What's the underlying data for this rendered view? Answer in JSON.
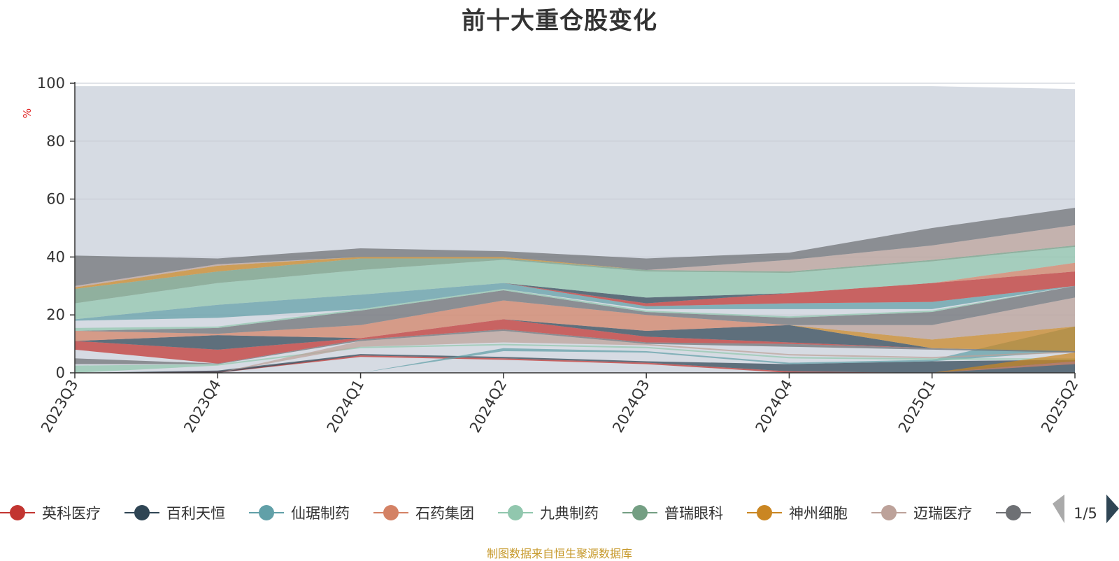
{
  "title": "前十大重仓股变化",
  "footer": "制图数据来自恒生聚源数据库",
  "legend_page": "1/5",
  "chart_data": {
    "type": "area",
    "title": "前十大重仓股变化",
    "xlabel": "",
    "ylabel": "%",
    "ylim": [
      0,
      100
    ],
    "yticks": [
      0,
      20,
      40,
      60,
      80,
      100
    ],
    "categories": [
      "2023Q3",
      "2023Q4",
      "2024Q1",
      "2024Q2",
      "2024Q3",
      "2024Q4",
      "2025Q1",
      "2025Q2"
    ],
    "grid": true,
    "legend_position": "bottom",
    "background_region": {
      "name": "",
      "values": [
        99,
        99,
        99,
        99,
        99,
        99,
        99,
        98
      ],
      "color": "#d6dbe3"
    },
    "series": [
      {
        "name": "英科医疗",
        "color": "#c23531",
        "lower": [
          0,
          0,
          5.5,
          4.5,
          3.0,
          0,
          0,
          0
        ],
        "upper": [
          0,
          0.5,
          6.0,
          5.0,
          3.5,
          0.5,
          0,
          0
        ]
      },
      {
        "name": "百利天恒",
        "color": "#2f4554",
        "lower": [
          0,
          0,
          6.0,
          5.0,
          3.5,
          0.5,
          0,
          0
        ],
        "upper": [
          0,
          0.8,
          6.5,
          5.5,
          4.0,
          3.0,
          4.0,
          4.5
        ]
      },
      {
        "name": "仙琚制药",
        "color": "#61a0a8",
        "lower": [
          0,
          0,
          0,
          7.5,
          7.0,
          3.0,
          4.0,
          7.5
        ],
        "upper": [
          0,
          0,
          0,
          8.5,
          7.5,
          3.5,
          4.5,
          16.0
        ]
      },
      {
        "name": "石药集团",
        "color": "#d48265",
        "lower": [
          0,
          0,
          0,
          0,
          0,
          0,
          0,
          3.0
        ],
        "upper": [
          0,
          0,
          0,
          0,
          0,
          0,
          0,
          4.0
        ]
      },
      {
        "name": "九典制药",
        "color": "#91c7ae",
        "lower": [
          0,
          2.5,
          8.5,
          9.5,
          8.5,
          5.0,
          4.5,
          4.5
        ],
        "upper": [
          2.5,
          3.0,
          9.0,
          10.0,
          9.0,
          5.5,
          5.0,
          5.0
        ]
      },
      {
        "name": "普瑞眼科",
        "color": "#749f83",
        "lower": [
          0,
          0,
          0,
          0,
          0,
          0,
          0,
          0
        ],
        "upper": [
          0,
          0,
          0,
          0,
          0,
          0,
          0,
          0
        ]
      },
      {
        "name": "神州细胞",
        "color": "#ca8622",
        "lower": [
          0,
          0,
          0,
          0,
          0,
          0,
          0,
          4.0
        ],
        "upper": [
          0,
          0,
          0,
          0,
          0,
          0,
          0,
          7.0
        ]
      },
      {
        "name": "迈瑞医疗",
        "color": "#bda29a",
        "lower": [
          0,
          0,
          9.0,
          10.5,
          9.5,
          6.0,
          5.0,
          7.0
        ],
        "upper": [
          0,
          0,
          11.0,
          14.5,
          10.0,
          6.5,
          5.5,
          7.5
        ]
      },
      {
        "name": "",
        "color": "#6e7074",
        "lower": [
          3.0,
          3.0,
          11.0,
          14.5,
          10.0,
          9.0,
          8.0,
          7.0
        ],
        "upper": [
          5.0,
          3.2,
          11.5,
          15.0,
          10.5,
          10.0,
          8.5,
          7.5
        ]
      },
      {
        "name": "",
        "color": "#c23531",
        "lower": [
          8.0,
          3.2,
          11.5,
          15.0,
          10.5,
          10.0,
          8.5,
          7.5
        ],
        "upper": [
          11.0,
          8.0,
          12.0,
          18.5,
          12.5,
          10.5,
          8.5,
          7.5
        ]
      },
      {
        "name": "",
        "color": "#2f4554",
        "lower": [
          11.0,
          8.0,
          12.0,
          18.5,
          12.5,
          10.5,
          8.5,
          7.5
        ],
        "upper": [
          11.0,
          13.0,
          12.0,
          18.5,
          14.5,
          16.5,
          8.5,
          7.5
        ]
      },
      {
        "name": "",
        "color": "#d48265",
        "lower": [
          11.0,
          13.0,
          12.0,
          18.5,
          14.5,
          16.5,
          8.5,
          7.5
        ],
        "upper": [
          14.5,
          13.5,
          16.5,
          25.0,
          20.0,
          16.5,
          8.5,
          7.5
        ]
      },
      {
        "name": "",
        "color": "#ca8622",
        "lower": [
          14.5,
          13.5,
          16.5,
          25.0,
          20.0,
          16.5,
          8.5,
          7.5
        ],
        "upper": [
          14.5,
          13.5,
          16.5,
          25.0,
          20.0,
          16.5,
          11.5,
          16.0
        ]
      },
      {
        "name": "",
        "color": "#bda29a",
        "lower": [
          14.5,
          13.5,
          16.5,
          25.0,
          20.0,
          16.5,
          11.5,
          16.0
        ],
        "upper": [
          14.5,
          13.5,
          16.5,
          25.0,
          20.0,
          16.5,
          16.5,
          26.0
        ]
      },
      {
        "name": "",
        "color": "#6e7074",
        "lower": [
          14.5,
          13.5,
          16.5,
          25.0,
          20.0,
          16.5,
          16.5,
          26.0
        ],
        "upper": [
          14.5,
          15.5,
          21.5,
          28.5,
          21.0,
          19.0,
          21.0,
          30.0
        ]
      },
      {
        "name": "",
        "color": "#91c7ae",
        "lower": [
          14.5,
          15.5,
          21.5,
          28.5,
          21.0,
          19.0,
          21.0,
          30.0
        ],
        "upper": [
          15.5,
          16.0,
          22.0,
          29.0,
          21.5,
          19.5,
          21.5,
          30.0
        ]
      },
      {
        "name": "",
        "color": "#61a0a8",
        "lower": [
          18.0,
          19.0,
          22.0,
          29.0,
          22.0,
          22.0,
          22.0,
          30.0
        ],
        "upper": [
          18.5,
          23.5,
          27.0,
          31.0,
          23.0,
          24.0,
          24.5,
          30.0
        ]
      },
      {
        "name": "",
        "color": "#c23531",
        "lower": [
          18.5,
          23.5,
          27.0,
          31.0,
          23.0,
          24.0,
          24.5,
          30.0
        ],
        "upper": [
          18.5,
          23.5,
          27.0,
          31.0,
          24.0,
          27.5,
          31.0,
          35.0
        ]
      },
      {
        "name": "",
        "color": "#2f4554",
        "lower": [
          18.5,
          23.5,
          27.0,
          31.0,
          24.0,
          27.5,
          31.0,
          35.0
        ],
        "upper": [
          18.5,
          23.5,
          27.0,
          31.0,
          26.0,
          27.5,
          31.0,
          35.0
        ]
      },
      {
        "name": "",
        "color": "#d48265",
        "lower": [
          18.5,
          23.5,
          27.0,
          31.0,
          26.0,
          27.5,
          31.0,
          35.0
        ],
        "upper": [
          18.5,
          23.5,
          27.0,
          31.0,
          26.0,
          27.5,
          31.0,
          38.0
        ]
      },
      {
        "name": "",
        "color": "#91c7ae",
        "lower": [
          18.5,
          23.5,
          27.0,
          31.0,
          26.0,
          27.5,
          31.0,
          38.0
        ],
        "upper": [
          24.0,
          31.0,
          35.5,
          39.0,
          35.0,
          34.5,
          38.5,
          43.5
        ]
      },
      {
        "name": "",
        "color": "#749f83",
        "lower": [
          24.0,
          31.0,
          35.5,
          39.0,
          35.0,
          34.5,
          38.5,
          43.5
        ],
        "upper": [
          29.0,
          35.0,
          39.5,
          39.5,
          35.5,
          35.0,
          39.0,
          44.0
        ]
      },
      {
        "name": "",
        "color": "#ca8622",
        "lower": [
          29.0,
          35.0,
          39.5,
          39.5,
          35.5,
          35.0,
          39.0,
          44.0
        ],
        "upper": [
          29.5,
          37.0,
          40.0,
          40.0,
          35.5,
          35.0,
          39.0,
          44.0
        ]
      },
      {
        "name": "",
        "color": "#bda29a",
        "lower": [
          29.5,
          37.0,
          40.0,
          40.0,
          35.5,
          35.0,
          39.0,
          44.0
        ],
        "upper": [
          30.0,
          37.5,
          40.0,
          40.0,
          35.5,
          39.0,
          44.0,
          51.0
        ]
      },
      {
        "name": "",
        "color": "#6e7074",
        "lower": [
          30.0,
          37.5,
          40.0,
          40.0,
          35.5,
          39.0,
          44.0,
          51.0
        ],
        "upper": [
          40.5,
          39.5,
          43.0,
          42.0,
          39.5,
          41.5,
          50.0,
          57.0
        ]
      }
    ]
  },
  "legend": {
    "items": [
      {
        "label": "英科医疗",
        "color": "#c23531"
      },
      {
        "label": "百利天恒",
        "color": "#2f4554"
      },
      {
        "label": "仙琚制药",
        "color": "#61a0a8"
      },
      {
        "label": "石药集团",
        "color": "#d48265"
      },
      {
        "label": "九典制药",
        "color": "#91c7ae"
      },
      {
        "label": "普瑞眼科",
        "color": "#749f83"
      },
      {
        "label": "神州细胞",
        "color": "#ca8622"
      },
      {
        "label": "迈瑞医疗",
        "color": "#bda29a"
      },
      {
        "label": "",
        "color": "#6e7074"
      }
    ]
  }
}
